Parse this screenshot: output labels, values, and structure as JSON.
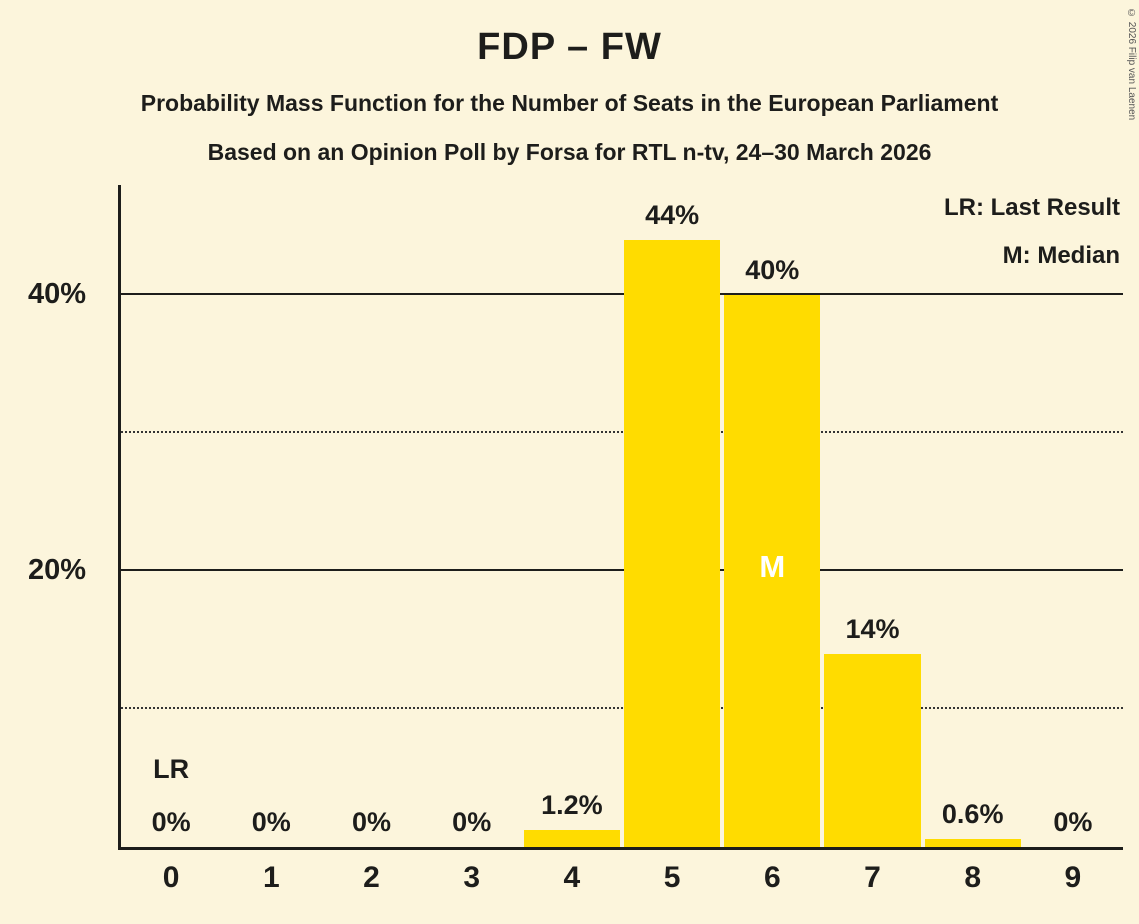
{
  "title": "FDP – FW",
  "subtitle1": "Probability Mass Function for the Number of Seats in the European Parliament",
  "subtitle2": "Based on an Opinion Poll by Forsa for RTL n-tv, 24–30 March 2026",
  "copyright": "© 2026 Filip van Laenen",
  "legend": {
    "lr": "LR: Last Result",
    "m": "M: Median"
  },
  "colors": {
    "background": "#FCF5DC",
    "bar": "#FFDC00",
    "text": "#1D1D1B",
    "median_label": "#FFFFFF"
  },
  "chart_data": {
    "type": "bar",
    "title": "FDP – FW",
    "xlabel": "",
    "ylabel": "",
    "categories": [
      "0",
      "1",
      "2",
      "3",
      "4",
      "5",
      "6",
      "7",
      "8",
      "9"
    ],
    "values": [
      0,
      0,
      0,
      0,
      1.2,
      44,
      40,
      14,
      0.6,
      0
    ],
    "bar_labels": [
      "0%",
      "0%",
      "0%",
      "0%",
      "1.2%",
      "44%",
      "40%",
      "14%",
      "0.6%",
      "0%"
    ],
    "ylim": [
      0,
      48
    ],
    "yticks": [
      {
        "value": 10,
        "label": "",
        "style": "dotted"
      },
      {
        "value": 20,
        "label": "20%",
        "style": "solid"
      },
      {
        "value": 30,
        "label": "",
        "style": "dotted"
      },
      {
        "value": 40,
        "label": "40%",
        "style": "solid"
      }
    ],
    "grid": "horizontal",
    "legend_position": "top-right",
    "annotations": {
      "lr_seat": "0",
      "lr_label": "LR",
      "median_seat": "6",
      "median_label": "M"
    }
  }
}
